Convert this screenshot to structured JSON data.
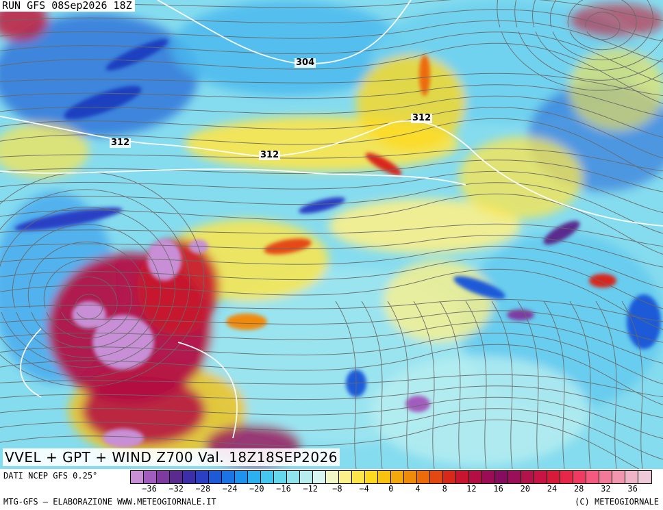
{
  "header": {
    "run_label": "RUN GFS 08Sep2026 18Z"
  },
  "isolines": [
    "304",
    "312",
    "312",
    "312"
  ],
  "map_title": "VVEL + GPT + WIND Z700 Val. 18Z18SEP2026",
  "footer": {
    "source": "DATI NCEP GFS 0.25°",
    "credit_left": "MTG-GFS — ELABORAZIONE WWW.METEOGIORNALE.IT",
    "credit_right": "(C) METEOGIORNALE"
  },
  "legend": {
    "tick_labels": [
      "-36",
      "-32",
      "-28",
      "-24",
      "-20",
      "-16",
      "-12",
      "-8",
      "-4",
      "0",
      "4",
      "8",
      "12",
      "16",
      "20",
      "24",
      "28",
      "32",
      "36"
    ],
    "colors": [
      "#c88fd6",
      "#a25cbd",
      "#7e3aa0",
      "#5a2a8e",
      "#3b2ea8",
      "#2a3fc4",
      "#1d5ad8",
      "#1a74e6",
      "#1d92ee",
      "#2bb0f0",
      "#45c8f0",
      "#66d8ee",
      "#8fe4ee",
      "#b6eef0",
      "#d8f6f2",
      "#f2f7c8",
      "#fbf08a",
      "#fde64a",
      "#fcd81e",
      "#f8c210",
      "#f4a80c",
      "#f08a0a",
      "#ec6a0a",
      "#e44812",
      "#d8281a",
      "#c8142e",
      "#b40e44",
      "#9c0c56",
      "#860c60",
      "#9a0f58",
      "#b3124a",
      "#c81444",
      "#d81a3a",
      "#e6274a",
      "#f03a62",
      "#f45a80",
      "#f47898",
      "#f296b0",
      "#f0b4c8",
      "#eecad8"
    ]
  },
  "colors": {
    "background_field": "#7fd8ee",
    "streamline": "#666666"
  }
}
